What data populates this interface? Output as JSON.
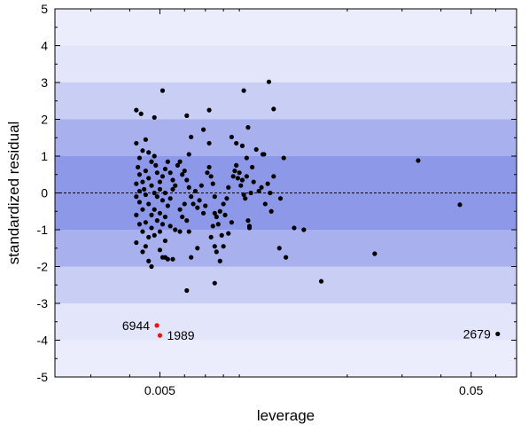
{
  "chart_data": {
    "type": "scatter",
    "xlabel": "leverage",
    "ylabel": "standardized residual",
    "x_scale": "log",
    "xlim": [
      0.0023,
      0.07
    ],
    "ylim": [
      -5,
      5
    ],
    "x_ticks": [
      {
        "value": 0.005,
        "label": "0.005"
      },
      {
        "value": 0.05,
        "label": "0.05"
      }
    ],
    "y_ticks": [
      5,
      4,
      3,
      2,
      1,
      0,
      -1,
      -2,
      -3,
      -4,
      -5
    ],
    "reference_line": {
      "y": 0,
      "style": "dashed"
    },
    "bands": [
      {
        "range": [
          -1,
          1
        ],
        "color": "#8e98e8"
      },
      {
        "range": [
          -2,
          2
        ],
        "color": "#a8b0ee"
      },
      {
        "range": [
          -3,
          3
        ],
        "color": "#c9cef5"
      },
      {
        "range": [
          -5,
          5
        ],
        "color": "#e3e6fb"
      }
    ],
    "series": [
      {
        "color": "#000000",
        "points": [
          [
            0.0042,
            2.25
          ],
          [
            0.00435,
            2.15
          ],
          [
            0.0048,
            2.05
          ],
          [
            0.0051,
            2.78
          ],
          [
            0.0061,
            2.1
          ],
          [
            0.0072,
            2.25
          ],
          [
            0.0093,
            2.78
          ],
          [
            0.0112,
            3.02
          ],
          [
            0.0116,
            2.28
          ],
          [
            0.0069,
            1.72
          ],
          [
            0.0063,
            1.52
          ],
          [
            0.0085,
            1.52
          ],
          [
            0.0088,
            1.35
          ],
          [
            0.0092,
            1.28
          ],
          [
            0.0096,
            1.78
          ],
          [
            0.0102,
            1.18
          ],
          [
            0.0108,
            1.05
          ],
          [
            0.0107,
            1.05
          ],
          [
            0.0125,
            0.95
          ],
          [
            0.0095,
            0.95
          ],
          [
            0.0072,
            1.35
          ],
          [
            0.0062,
            1.05
          ],
          [
            0.0042,
            1.35
          ],
          [
            0.0043,
            0.95
          ],
          [
            0.0044,
            1.15
          ],
          [
            0.0045,
            1.45
          ],
          [
            0.0046,
            1.1
          ],
          [
            0.0047,
            0.85
          ],
          [
            0.0048,
            1.0
          ],
          [
            0.00485,
            0.75
          ],
          [
            0.0049,
            0.55
          ],
          [
            0.005,
            0.3
          ],
          [
            0.0051,
            0.45
          ],
          [
            0.0052,
            0.65
          ],
          [
            0.0053,
            0.85
          ],
          [
            0.0054,
            0.55
          ],
          [
            0.0055,
            0.35
          ],
          [
            0.0056,
            0.2
          ],
          [
            0.0057,
            0.75
          ],
          [
            0.0058,
            0.85
          ],
          [
            0.0059,
            0.5
          ],
          [
            0.00425,
            0.7
          ],
          [
            0.0043,
            0.5
          ],
          [
            0.0044,
            0.3
          ],
          [
            0.00445,
            0.1
          ],
          [
            0.0045,
            0.6
          ],
          [
            0.0046,
            0.4
          ],
          [
            0.0047,
            0.2
          ],
          [
            0.0048,
            0.0
          ],
          [
            0.0049,
            -0.1
          ],
          [
            0.005,
            0.1
          ],
          [
            0.0051,
            -0.2
          ],
          [
            0.0052,
            0.0
          ],
          [
            0.0053,
            -0.35
          ],
          [
            0.0054,
            -0.15
          ],
          [
            0.0055,
            0.1
          ],
          [
            0.0042,
            0.25
          ],
          [
            0.0042,
            -0.1
          ],
          [
            0.0043,
            0.05
          ],
          [
            0.0043,
            -0.25
          ],
          [
            0.0044,
            -0.45
          ],
          [
            0.0045,
            -0.05
          ],
          [
            0.0046,
            -0.3
          ],
          [
            0.0047,
            -0.6
          ],
          [
            0.0048,
            -0.45
          ],
          [
            0.0049,
            -0.75
          ],
          [
            0.005,
            -0.55
          ],
          [
            0.0051,
            -0.85
          ],
          [
            0.0052,
            -0.65
          ],
          [
            0.0042,
            -0.6
          ],
          [
            0.0043,
            -0.85
          ],
          [
            0.0044,
            -1.05
          ],
          [
            0.0045,
            -0.8
          ],
          [
            0.0046,
            -1.2
          ],
          [
            0.0047,
            -0.95
          ],
          [
            0.0048,
            -1.15
          ],
          [
            0.005,
            -1.05
          ],
          [
            0.0052,
            -1.3
          ],
          [
            0.0054,
            -0.9
          ],
          [
            0.0056,
            -1.0
          ],
          [
            0.0058,
            -1.05
          ],
          [
            0.0042,
            -1.35
          ],
          [
            0.0044,
            -1.6
          ],
          [
            0.0045,
            -1.45
          ],
          [
            0.0046,
            -1.85
          ],
          [
            0.0047,
            -2.0
          ],
          [
            0.005,
            -1.55
          ],
          [
            0.0052,
            -1.75
          ],
          [
            0.0053,
            -1.8
          ],
          [
            0.0055,
            -1.8
          ],
          [
            0.0051,
            -1.75
          ],
          [
            0.006,
            0.6
          ],
          [
            0.0061,
            0.35
          ],
          [
            0.0062,
            0.15
          ],
          [
            0.0063,
            -0.1
          ],
          [
            0.0064,
            -0.3
          ],
          [
            0.0065,
            0.05
          ],
          [
            0.0066,
            -0.4
          ],
          [
            0.0067,
            -0.2
          ],
          [
            0.0068,
            0.2
          ],
          [
            0.0069,
            -0.55
          ],
          [
            0.007,
            -0.35
          ],
          [
            0.0058,
            -0.45
          ],
          [
            0.0059,
            -0.65
          ],
          [
            0.006,
            -0.3
          ],
          [
            0.0062,
            -1.05
          ],
          [
            0.0061,
            -0.75
          ],
          [
            0.0071,
            0.55
          ],
          [
            0.0072,
            0.7
          ],
          [
            0.0073,
            0.45
          ],
          [
            0.0074,
            0.25
          ],
          [
            0.0075,
            -0.1
          ],
          [
            0.0076,
            -0.65
          ],
          [
            0.0077,
            -0.85
          ],
          [
            0.0078,
            -0.5
          ],
          [
            0.0079,
            -1.15
          ],
          [
            0.0081,
            -0.6
          ],
          [
            0.0082,
            -0.15
          ],
          [
            0.0083,
            0.15
          ],
          [
            0.008,
            -0.3
          ],
          [
            0.0074,
            -0.9
          ],
          [
            0.0075,
            -0.55
          ],
          [
            0.0086,
            0.45
          ],
          [
            0.0087,
            0.6
          ],
          [
            0.0088,
            0.75
          ],
          [
            0.0089,
            0.4
          ],
          [
            0.009,
            0.55
          ],
          [
            0.0091,
            0.2
          ],
          [
            0.0092,
            0.35
          ],
          [
            0.0093,
            -0.05
          ],
          [
            0.0094,
            -0.15
          ],
          [
            0.0095,
            0.45
          ],
          [
            0.0096,
            -0.75
          ],
          [
            0.0097,
            -0.9
          ],
          [
            0.0098,
            0.0
          ],
          [
            0.0099,
            0.7
          ],
          [
            0.01,
            0.3
          ],
          [
            0.0104,
            0.05
          ],
          [
            0.0106,
            0.15
          ],
          [
            0.0109,
            -0.3
          ],
          [
            0.0111,
            0.25
          ],
          [
            0.0113,
            0.0
          ],
          [
            0.0114,
            -0.5
          ],
          [
            0.0116,
            0.45
          ],
          [
            0.0122,
            -0.15
          ],
          [
            0.0097,
            -0.95
          ],
          [
            0.0085,
            -0.8
          ],
          [
            0.0073,
            -1.2
          ],
          [
            0.0075,
            -1.45
          ],
          [
            0.0076,
            -1.6
          ],
          [
            0.0078,
            -1.85
          ],
          [
            0.008,
            -1.45
          ],
          [
            0.0083,
            -1.1
          ],
          [
            0.0066,
            -1.5
          ],
          [
            0.0063,
            -1.75
          ],
          [
            0.0075,
            -2.45
          ],
          [
            0.0061,
            -2.65
          ],
          [
            0.0121,
            -1.5
          ],
          [
            0.0127,
            -1.75
          ],
          [
            0.0145,
            -1.0
          ],
          [
            0.0165,
            -2.4
          ],
          [
            0.0245,
            -1.65
          ],
          [
            0.0135,
            -0.95
          ],
          [
            0.0338,
            0.88
          ],
          [
            0.046,
            -0.32
          ],
          [
            0.0609,
            -3.83
          ]
        ]
      },
      {
        "color": "#e8140e",
        "points": [
          [
            0.00489,
            -3.6
          ],
          [
            0.005,
            -3.87
          ]
        ]
      }
    ],
    "annotations": [
      {
        "text": "6944",
        "x": 0.00489,
        "y": -3.6,
        "side": "left"
      },
      {
        "text": "1989",
        "x": 0.005,
        "y": -3.87,
        "side": "right"
      },
      {
        "text": "2679",
        "x": 0.0609,
        "y": -3.83,
        "side": "left"
      }
    ]
  }
}
